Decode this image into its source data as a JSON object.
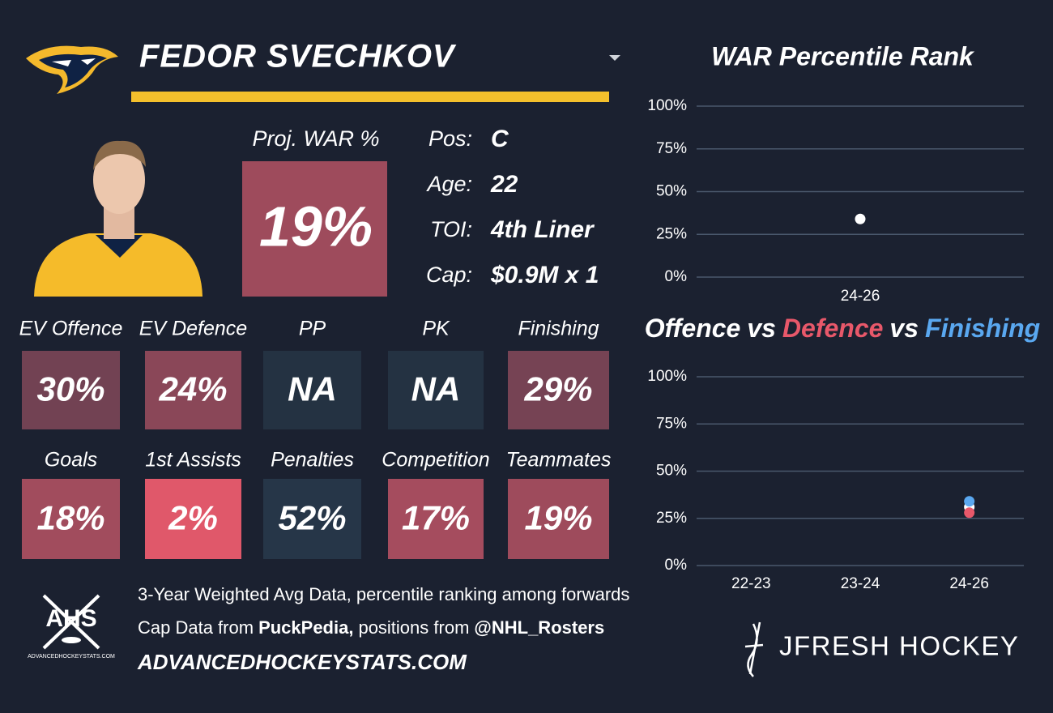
{
  "header": {
    "player_name": "FEDOR SVECHKOV"
  },
  "proj_war": {
    "label": "Proj. WAR %",
    "value": 19,
    "value_label": "19%"
  },
  "bio": [
    {
      "label": "Pos:",
      "value": "C"
    },
    {
      "label": "Age:",
      "value": "22"
    },
    {
      "label": "TOI:",
      "value": "4th Liner"
    },
    {
      "label": "Cap:",
      "value": "$0.9M x 1"
    }
  ],
  "tiles": [
    [
      {
        "label": "EV Offence",
        "value": 30,
        "value_label": "30%"
      },
      {
        "label": "EV Defence",
        "value": 24,
        "value_label": "24%"
      },
      {
        "label": "PP",
        "value_label": "NA"
      },
      {
        "label": "PK",
        "value_label": "NA"
      },
      {
        "label": "Finishing",
        "value": 29,
        "value_label": "29%"
      }
    ],
    [
      {
        "label": "Goals",
        "value": 18,
        "value_label": "18%"
      },
      {
        "label": "1st Assists",
        "value": 2,
        "value_label": "2%"
      },
      {
        "label": "Penalties",
        "value": 52,
        "value_label": "52%"
      },
      {
        "label": "Competition",
        "value": 17,
        "value_label": "17%"
      },
      {
        "label": "Teammates",
        "value": 19,
        "value_label": "19%"
      }
    ]
  ],
  "chart_data": [
    {
      "type": "scatter",
      "title": "WAR Percentile Rank",
      "categories": [
        "24-26"
      ],
      "series": [
        {
          "color": "#ffffff",
          "values": [
            34
          ]
        }
      ],
      "ylim": [
        0,
        100
      ],
      "yticks": [
        {
          "value": 0,
          "label": "0%"
        },
        {
          "value": 25,
          "label": "25%"
        },
        {
          "value": 50,
          "label": "50%"
        },
        {
          "value": 75,
          "label": "75%"
        },
        {
          "value": 100,
          "label": "100%"
        }
      ],
      "grid": true
    },
    {
      "type": "scatter",
      "title_separator": "vs",
      "categories": [
        "22-23",
        "23-24",
        "24-26"
      ],
      "series": [
        {
          "name": "Offence",
          "color": "#ffffff",
          "values": [
            null,
            null,
            31
          ]
        },
        {
          "name": "Defence",
          "color": "#e8586a",
          "values": [
            null,
            null,
            28
          ]
        },
        {
          "name": "Finishing",
          "color": "#5aa8f0",
          "values": [
            null,
            null,
            34
          ]
        }
      ],
      "ylim": [
        0,
        100
      ],
      "yticks": [
        {
          "value": 0,
          "label": "0%"
        },
        {
          "value": 25,
          "label": "25%"
        },
        {
          "value": 50,
          "label": "50%"
        },
        {
          "value": 75,
          "label": "75%"
        },
        {
          "value": 100,
          "label": "100%"
        }
      ],
      "grid": true
    }
  ],
  "footer": {
    "note": "3-Year Weighted Avg Data, percentile ranking among forwards",
    "credits": [
      "Cap Data from",
      "PuckPedia,",
      "positions from",
      "@NHL_Rosters"
    ],
    "site": "ADVANCEDHOCKEYSTATS.COM",
    "ahs_logo": {
      "text": "AHS",
      "caption": "ADVANCEDHOCKEYSTATS.COM"
    },
    "brand": "JFRESH HOCKEY"
  }
}
